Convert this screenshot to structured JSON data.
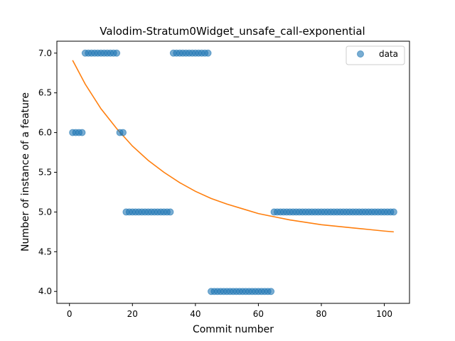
{
  "chart_data": {
    "type": "scatter",
    "title": "Valodim-Stratum0Widget_unsafe_call-exponential",
    "xlabel": "Commit number",
    "ylabel": "Number of instance of a feature",
    "xlim": [
      -4,
      108
    ],
    "ylim": [
      3.85,
      7.15
    ],
    "xticks": [
      0,
      20,
      40,
      60,
      80,
      100
    ],
    "yticks": [
      4.0,
      4.5,
      5.0,
      5.5,
      6.0,
      6.5,
      7.0
    ],
    "ytick_labels": [
      "4.0",
      "4.5",
      "5.0",
      "5.5",
      "6.0",
      "6.5",
      "7.0"
    ],
    "legend_position": "top-right",
    "grid": false,
    "series": [
      {
        "name": "data",
        "kind": "scatter",
        "color": "#1f77b4",
        "points": [
          [
            1,
            6
          ],
          [
            2,
            6
          ],
          [
            3,
            6
          ],
          [
            4,
            6
          ],
          [
            5,
            7
          ],
          [
            6,
            7
          ],
          [
            7,
            7
          ],
          [
            8,
            7
          ],
          [
            9,
            7
          ],
          [
            10,
            7
          ],
          [
            11,
            7
          ],
          [
            12,
            7
          ],
          [
            13,
            7
          ],
          [
            14,
            7
          ],
          [
            15,
            7
          ],
          [
            16,
            6
          ],
          [
            17,
            6
          ],
          [
            18,
            5
          ],
          [
            19,
            5
          ],
          [
            20,
            5
          ],
          [
            21,
            5
          ],
          [
            22,
            5
          ],
          [
            23,
            5
          ],
          [
            24,
            5
          ],
          [
            25,
            5
          ],
          [
            26,
            5
          ],
          [
            27,
            5
          ],
          [
            28,
            5
          ],
          [
            29,
            5
          ],
          [
            30,
            5
          ],
          [
            31,
            5
          ],
          [
            32,
            5
          ],
          [
            33,
            7
          ],
          [
            34,
            7
          ],
          [
            35,
            7
          ],
          [
            36,
            7
          ],
          [
            37,
            7
          ],
          [
            38,
            7
          ],
          [
            39,
            7
          ],
          [
            40,
            7
          ],
          [
            41,
            7
          ],
          [
            42,
            7
          ],
          [
            43,
            7
          ],
          [
            44,
            7
          ],
          [
            45,
            4
          ],
          [
            46,
            4
          ],
          [
            47,
            4
          ],
          [
            48,
            4
          ],
          [
            49,
            4
          ],
          [
            50,
            4
          ],
          [
            51,
            4
          ],
          [
            52,
            4
          ],
          [
            53,
            4
          ],
          [
            54,
            4
          ],
          [
            55,
            4
          ],
          [
            56,
            4
          ],
          [
            57,
            4
          ],
          [
            58,
            4
          ],
          [
            59,
            4
          ],
          [
            60,
            4
          ],
          [
            61,
            4
          ],
          [
            62,
            4
          ],
          [
            63,
            4
          ],
          [
            64,
            4
          ],
          [
            65,
            5
          ],
          [
            66,
            5
          ],
          [
            67,
            5
          ],
          [
            68,
            5
          ],
          [
            69,
            5
          ],
          [
            70,
            5
          ],
          [
            71,
            5
          ],
          [
            72,
            5
          ],
          [
            73,
            5
          ],
          [
            74,
            5
          ],
          [
            75,
            5
          ],
          [
            76,
            5
          ],
          [
            77,
            5
          ],
          [
            78,
            5
          ],
          [
            79,
            5
          ],
          [
            80,
            5
          ],
          [
            81,
            5
          ],
          [
            82,
            5
          ],
          [
            83,
            5
          ],
          [
            84,
            5
          ],
          [
            85,
            5
          ],
          [
            86,
            5
          ],
          [
            87,
            5
          ],
          [
            88,
            5
          ],
          [
            89,
            5
          ],
          [
            90,
            5
          ],
          [
            91,
            5
          ],
          [
            92,
            5
          ],
          [
            93,
            5
          ],
          [
            94,
            5
          ],
          [
            95,
            5
          ],
          [
            96,
            5
          ],
          [
            97,
            5
          ],
          [
            98,
            5
          ],
          [
            99,
            5
          ],
          [
            100,
            5
          ],
          [
            101,
            5
          ],
          [
            102,
            5
          ],
          [
            103,
            5
          ]
        ]
      },
      {
        "kind": "line",
        "color": "#ff7f0e",
        "points": [
          [
            1,
            6.91
          ],
          [
            5,
            6.61
          ],
          [
            10,
            6.3
          ],
          [
            15,
            6.05
          ],
          [
            20,
            5.83
          ],
          [
            25,
            5.65
          ],
          [
            30,
            5.5
          ],
          [
            35,
            5.37
          ],
          [
            40,
            5.26
          ],
          [
            45,
            5.17
          ],
          [
            50,
            5.1
          ],
          [
            55,
            5.04
          ],
          [
            60,
            4.98
          ],
          [
            65,
            4.94
          ],
          [
            70,
            4.9
          ],
          [
            75,
            4.87
          ],
          [
            80,
            4.84
          ],
          [
            85,
            4.82
          ],
          [
            90,
            4.8
          ],
          [
            95,
            4.78
          ],
          [
            100,
            4.76
          ],
          [
            103,
            4.75
          ]
        ]
      }
    ]
  }
}
